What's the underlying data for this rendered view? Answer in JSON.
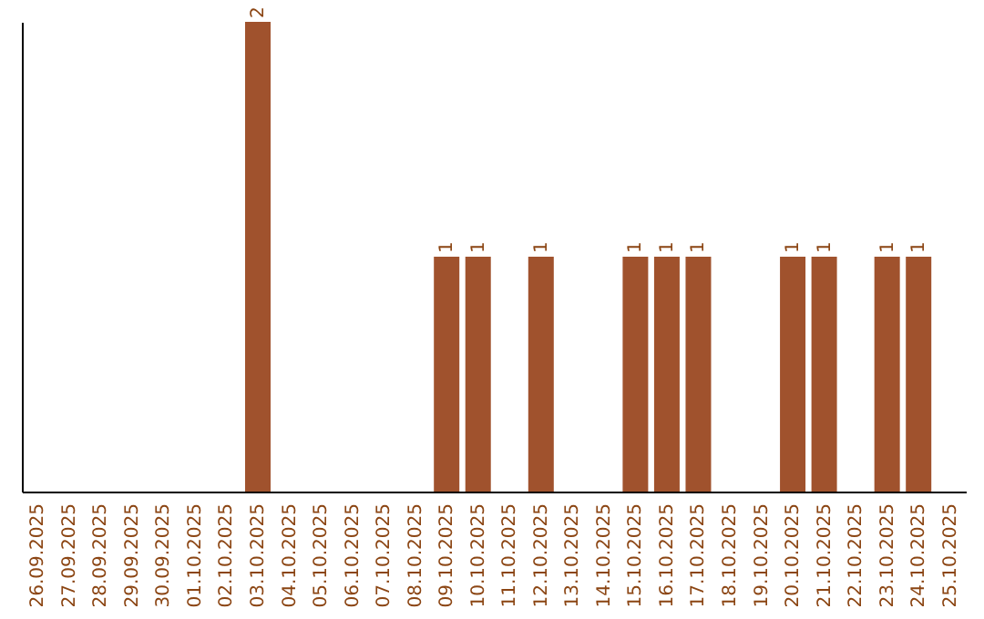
{
  "chart_data": {
    "type": "bar",
    "color": "#a0522d",
    "tick_labels": "x",
    "categories": [
      "26.09.2025",
      "27.09.2025",
      "28.09.2025",
      "29.09.2025",
      "30.09.2025",
      "01.10.2025",
      "02.10.2025",
      "03.10.2025",
      "04.10.2025",
      "05.10.2025",
      "06.10.2025",
      "07.10.2025",
      "08.10.2025",
      "09.10.2025",
      "10.10.2025",
      "11.10.2025",
      "12.10.2025",
      "13.10.2025",
      "14.10.2025",
      "15.10.2025",
      "16.10.2025",
      "17.10.2025",
      "18.10.2025",
      "19.10.2025",
      "20.10.2025",
      "21.10.2025",
      "22.10.2025",
      "23.10.2025",
      "24.10.2025",
      "25.10.2025"
    ],
    "values": [
      0,
      0,
      0,
      0,
      0,
      0,
      0,
      2,
      0,
      0,
      0,
      0,
      0,
      1,
      1,
      0,
      1,
      0,
      0,
      1,
      1,
      1,
      0,
      0,
      1,
      1,
      0,
      1,
      1,
      0
    ],
    "value_labels": [
      null,
      null,
      null,
      null,
      null,
      null,
      null,
      "2",
      null,
      null,
      null,
      null,
      null,
      "1",
      "1",
      null,
      "1",
      null,
      null,
      "1",
      "1",
      "1",
      null,
      null,
      "1",
      "1",
      null,
      "1",
      "1",
      null
    ]
  }
}
